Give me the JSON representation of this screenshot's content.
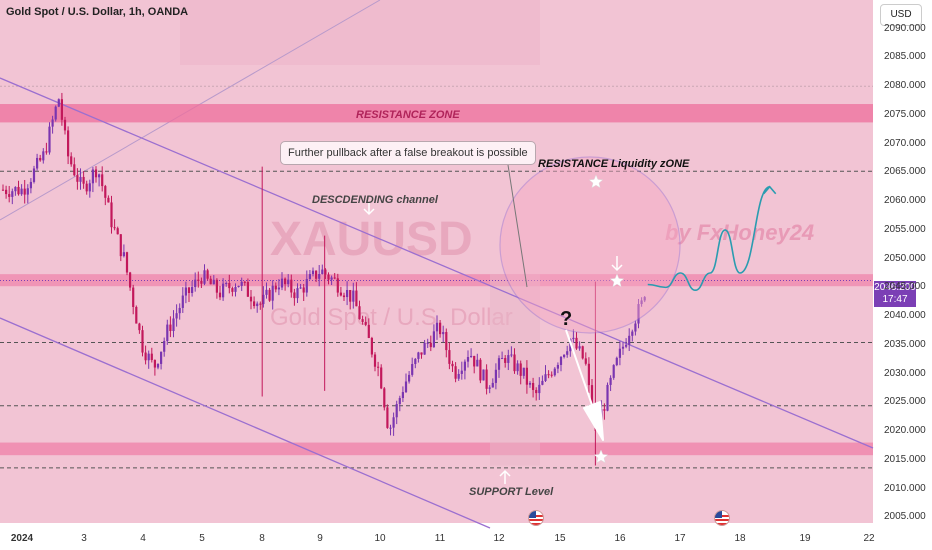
{
  "header": {
    "title": "Gold Spot / U.S. Dollar, 1h, OANDA",
    "currency_button": "USD"
  },
  "price_tag": {
    "price": "2046.200",
    "countdown": "17:47"
  },
  "annotations": {
    "resistance_zone": "RESISTANCE ZONE",
    "callout": "Further pullback after a false breakout is possible",
    "liquidity_zone": "RESISTANCE Liquidity zONE",
    "channel": "DESCDENDING channel",
    "support": "SUPPORT Level",
    "question": "?",
    "watermark_symbol": "XAUUSD",
    "watermark_name": "Gold Spot / U.S. Dollar",
    "watermark_author": "by FxHoney24"
  },
  "colors": {
    "background": "#f2c4d4",
    "zone": "#ee6f9c",
    "up": "#7a35b0",
    "down": "#c2185b",
    "channel": "#9b6fd0",
    "forecast": "#2a9cb0"
  },
  "chart_data": {
    "type": "candlestick",
    "symbol": "XAUUSD",
    "timeframe": "1h",
    "ylim": [
      2004,
      2095
    ],
    "y_ticks": [
      2005,
      2010,
      2015,
      2020,
      2025,
      2030,
      2035,
      2040,
      2045,
      2050,
      2055,
      2060,
      2065,
      2070,
      2075,
      2080,
      2085,
      2090
    ],
    "x_labels": [
      "2024",
      "3",
      "4",
      "5",
      "8",
      "9",
      "10",
      "11",
      "12",
      "15",
      "16",
      "17",
      "18",
      "19",
      "22"
    ],
    "current_price": 2046.2,
    "resistance_zone": [
      2073.7,
      2076.9
    ],
    "resistance_level": [
      2045.2,
      2047.3
    ],
    "support_zone": [
      2015.8,
      2018.0
    ],
    "dashed_levels": [
      2080.0,
      2065.2,
      2035.4,
      2024.4,
      2013.6
    ],
    "price_path": [
      [
        0.0,
        2062
      ],
      [
        0.35,
        2068
      ],
      [
        0.6,
        2078
      ],
      [
        0.75,
        2068
      ],
      [
        1.0,
        2062
      ],
      [
        1.25,
        2066
      ],
      [
        1.5,
        2056
      ],
      [
        1.7,
        2050
      ],
      [
        2.0,
        2035
      ],
      [
        2.2,
        2031
      ],
      [
        2.45,
        2038
      ],
      [
        2.7,
        2043
      ],
      [
        3.0,
        2047
      ],
      [
        3.3,
        2044
      ],
      [
        3.6,
        2046
      ],
      [
        4.0,
        2042
      ],
      [
        4.3,
        2046
      ],
      [
        4.6,
        2044
      ],
      [
        5.0,
        2048
      ],
      [
        5.25,
        2046
      ],
      [
        5.55,
        2043
      ],
      [
        5.8,
        2036
      ],
      [
        6.0,
        2030
      ],
      [
        6.15,
        2020
      ],
      [
        6.4,
        2028
      ],
      [
        6.7,
        2034
      ],
      [
        7.0,
        2038
      ],
      [
        7.25,
        2030
      ],
      [
        7.5,
        2034
      ],
      [
        7.8,
        2028
      ],
      [
        8.1,
        2033
      ],
      [
        8.4,
        2030
      ],
      [
        8.6,
        2026
      ],
      [
        8.9,
        2031
      ],
      [
        9.2,
        2036
      ],
      [
        9.45,
        2032
      ],
      [
        9.6,
        2020
      ],
      [
        9.75,
        2024
      ],
      [
        9.95,
        2031
      ],
      [
        10.2,
        2038
      ],
      [
        10.4,
        2042
      ],
      [
        10.5,
        2047
      ]
    ],
    "spikes": [
      {
        "x": 4.02,
        "high": 2066,
        "low": 2026
      },
      {
        "x": 5.07,
        "high": 2054,
        "low": 2027
      },
      {
        "x": 9.62,
        "high": 2046,
        "low": 2014
      }
    ],
    "forecast_path": [
      [
        10.5,
        2045.5
      ],
      [
        10.8,
        2045.0
      ],
      [
        11.05,
        2047.5
      ],
      [
        11.3,
        2044.5
      ],
      [
        11.55,
        2047.5
      ],
      [
        11.8,
        2055.0
      ],
      [
        12.05,
        2047.5
      ],
      [
        12.55,
        2062.5
      ]
    ]
  }
}
